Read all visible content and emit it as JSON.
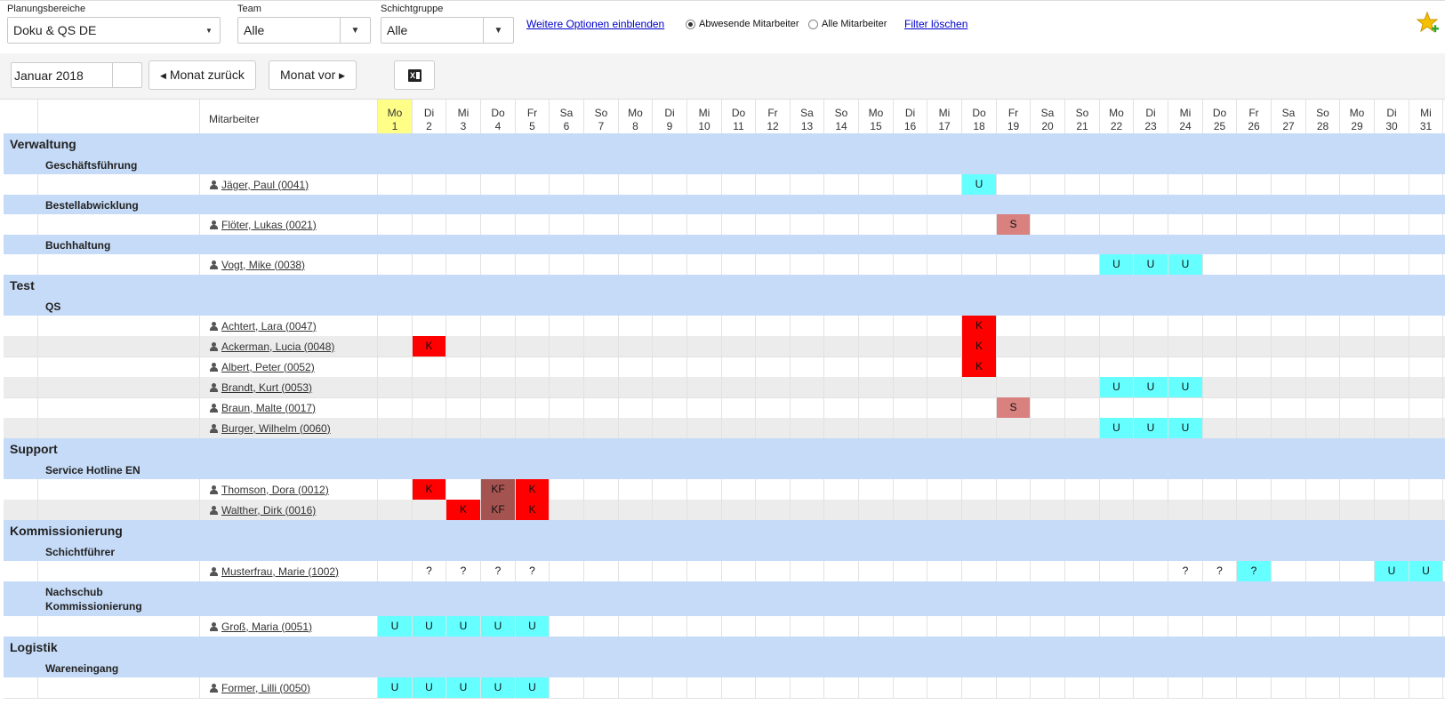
{
  "filters": {
    "planning_label": "Planungsbereiche",
    "planning_value": "Doku & QS DE",
    "team_label": "Team",
    "team_value": "Alle",
    "shift_label": "Schichtgruppe",
    "shift_value": "Alle",
    "more_options": "Weitere Optionen einblenden",
    "radio_absent": "Abwesende Mitarbeiter",
    "radio_all": "Alle Mitarbeiter",
    "radio_selected": "absent",
    "clear_filter": "Filter löschen",
    "favorite_icon": "star-add-icon"
  },
  "toolbar": {
    "month_value": "Januar 2018",
    "prev_label": "Monat zurück",
    "next_label": "Monat vor",
    "excel_icon": "excel-export-icon"
  },
  "grid": {
    "employee_header": "Mitarbeiter",
    "today_index": 0,
    "days": [
      {
        "wd": "Mo",
        "d": "1"
      },
      {
        "wd": "Di",
        "d": "2"
      },
      {
        "wd": "Mi",
        "d": "3"
      },
      {
        "wd": "Do",
        "d": "4"
      },
      {
        "wd": "Fr",
        "d": "5"
      },
      {
        "wd": "Sa",
        "d": "6"
      },
      {
        "wd": "So",
        "d": "7"
      },
      {
        "wd": "Mo",
        "d": "8"
      },
      {
        "wd": "Di",
        "d": "9"
      },
      {
        "wd": "Mi",
        "d": "10"
      },
      {
        "wd": "Do",
        "d": "11"
      },
      {
        "wd": "Fr",
        "d": "12"
      },
      {
        "wd": "Sa",
        "d": "13"
      },
      {
        "wd": "So",
        "d": "14"
      },
      {
        "wd": "Mo",
        "d": "15"
      },
      {
        "wd": "Di",
        "d": "16"
      },
      {
        "wd": "Mi",
        "d": "17"
      },
      {
        "wd": "Do",
        "d": "18"
      },
      {
        "wd": "Fr",
        "d": "19"
      },
      {
        "wd": "Sa",
        "d": "20"
      },
      {
        "wd": "So",
        "d": "21"
      },
      {
        "wd": "Mo",
        "d": "22"
      },
      {
        "wd": "Di",
        "d": "23"
      },
      {
        "wd": "Mi",
        "d": "24"
      },
      {
        "wd": "Do",
        "d": "25"
      },
      {
        "wd": "Fr",
        "d": "26"
      },
      {
        "wd": "Sa",
        "d": "27"
      },
      {
        "wd": "So",
        "d": "28"
      },
      {
        "wd": "Mo",
        "d": "29"
      },
      {
        "wd": "Di",
        "d": "30"
      },
      {
        "wd": "Mi",
        "d": "31"
      }
    ],
    "absence_colors": {
      "U": "#66ffff",
      "S": "#d9817f",
      "K": "#ff0000",
      "KF": "#a55350",
      "?": "none",
      "?c": "#66ffff"
    },
    "rows": [
      {
        "type": "g1",
        "label": "Verwaltung"
      },
      {
        "type": "g2",
        "label": "Geschäftsführung"
      },
      {
        "type": "emp",
        "name": "Jäger, Paul (0041)",
        "absences": [
          {
            "day": 18,
            "code": "U"
          }
        ]
      },
      {
        "type": "g2",
        "label": "Bestellabwicklung"
      },
      {
        "type": "emp",
        "name": "Flöter, Lukas (0021)",
        "absences": [
          {
            "day": 19,
            "code": "S"
          }
        ]
      },
      {
        "type": "g2",
        "label": "Buchhaltung"
      },
      {
        "type": "emp",
        "name": "Vogt, Mike (0038)",
        "absences": [
          {
            "day": 22,
            "code": "U"
          },
          {
            "day": 23,
            "code": "U"
          },
          {
            "day": 24,
            "code": "U"
          }
        ]
      },
      {
        "type": "g1",
        "label": "Test"
      },
      {
        "type": "g2",
        "label": "QS"
      },
      {
        "type": "emp",
        "name": "Achtert, Lara (0047)",
        "absences": [
          {
            "day": 18,
            "code": "K"
          }
        ]
      },
      {
        "type": "emp",
        "name": "Ackerman, Lucia (0048)",
        "alt": true,
        "absences": [
          {
            "day": 2,
            "code": "K"
          },
          {
            "day": 18,
            "code": "K"
          }
        ]
      },
      {
        "type": "emp",
        "name": "Albert, Peter (0052)",
        "absences": [
          {
            "day": 18,
            "code": "K"
          }
        ]
      },
      {
        "type": "emp",
        "name": "Brandt, Kurt (0053)",
        "alt": true,
        "absences": [
          {
            "day": 22,
            "code": "U"
          },
          {
            "day": 23,
            "code": "U"
          },
          {
            "day": 24,
            "code": "U"
          }
        ]
      },
      {
        "type": "emp",
        "name": "Braun, Malte (0017)",
        "absences": [
          {
            "day": 19,
            "code": "S"
          }
        ]
      },
      {
        "type": "emp",
        "name": "Burger, Wilhelm (0060)",
        "alt": true,
        "absences": [
          {
            "day": 22,
            "code": "U"
          },
          {
            "day": 23,
            "code": "U"
          },
          {
            "day": 24,
            "code": "U"
          }
        ]
      },
      {
        "type": "g1",
        "label": "Support"
      },
      {
        "type": "g2",
        "label": "Service Hotline EN"
      },
      {
        "type": "emp",
        "name": "Thomson, Dora (0012)",
        "absences": [
          {
            "day": 2,
            "code": "K"
          },
          {
            "day": 4,
            "code": "KF"
          },
          {
            "day": 5,
            "code": "K"
          }
        ]
      },
      {
        "type": "emp",
        "name": "Walther, Dirk (0016)",
        "alt": true,
        "absences": [
          {
            "day": 3,
            "code": "K"
          },
          {
            "day": 4,
            "code": "KF"
          },
          {
            "day": 5,
            "code": "K"
          }
        ]
      },
      {
        "type": "g1",
        "label": "Kommissionierung"
      },
      {
        "type": "g2",
        "label": "Schichtführer"
      },
      {
        "type": "emp",
        "name": "Musterfrau, Marie (1002)",
        "absences": [
          {
            "day": 2,
            "code": "?"
          },
          {
            "day": 3,
            "code": "?"
          },
          {
            "day": 4,
            "code": "?"
          },
          {
            "day": 5,
            "code": "?"
          },
          {
            "day": 24,
            "code": "?"
          },
          {
            "day": 25,
            "code": "?"
          },
          {
            "day": 26,
            "code": "?",
            "colorKey": "?c"
          },
          {
            "day": 30,
            "code": "U"
          },
          {
            "day": 31,
            "code": "U"
          }
        ]
      },
      {
        "type": "g2",
        "label": "Nachschub\nKommissionierung",
        "tall": true
      },
      {
        "type": "emp",
        "name": "Groß, Maria (0051)",
        "absences": [
          {
            "day": 1,
            "code": "U"
          },
          {
            "day": 2,
            "code": "U"
          },
          {
            "day": 3,
            "code": "U"
          },
          {
            "day": 4,
            "code": "U"
          },
          {
            "day": 5,
            "code": "U"
          }
        ]
      },
      {
        "type": "g1",
        "label": "Logistik"
      },
      {
        "type": "g2",
        "label": "Wareneingang"
      },
      {
        "type": "emp",
        "name": "Former, Lilli (0050)",
        "absences": [
          {
            "day": 1,
            "code": "U"
          },
          {
            "day": 2,
            "code": "U"
          },
          {
            "day": 3,
            "code": "U"
          },
          {
            "day": 4,
            "code": "U"
          },
          {
            "day": 5,
            "code": "U"
          }
        ]
      }
    ]
  }
}
